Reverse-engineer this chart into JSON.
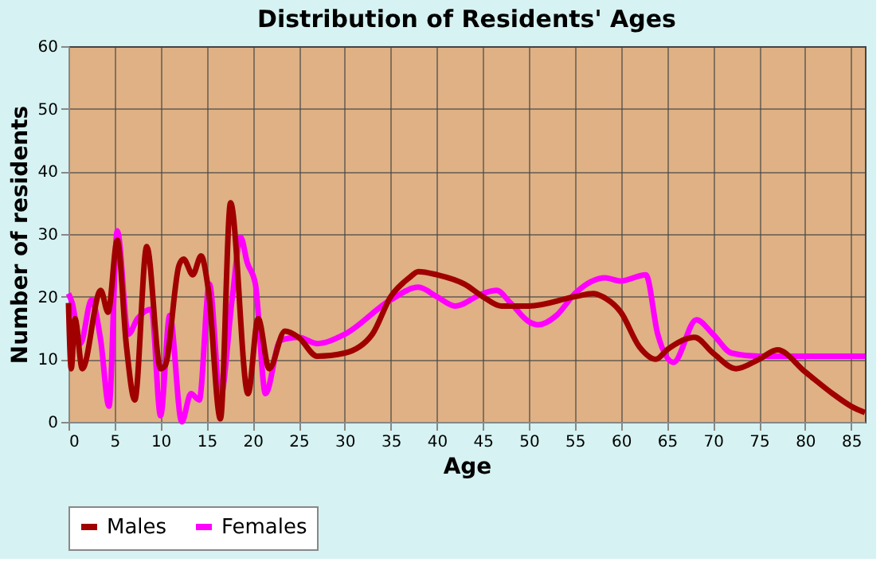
{
  "chart_data": {
    "type": "line",
    "title": "Distribution of Residents' Ages",
    "xlabel": "Age",
    "ylabel": "Number of residents",
    "xlim": [
      0,
      86.5
    ],
    "xticks": [
      0,
      5,
      10,
      15,
      20,
      25,
      30,
      35,
      40,
      45,
      50,
      55,
      60,
      65,
      70,
      75,
      80,
      85
    ],
    "ylim": [
      0,
      60
    ],
    "yticks": [
      0,
      10,
      20,
      30,
      40,
      50,
      60
    ],
    "grid": true,
    "legend": "bottom",
    "marker": "none",
    "line_style": "solid",
    "series": [
      {
        "name": "Males",
        "color": "#a00000",
        "x": [
          0,
          0.3,
          0.7,
          1.5,
          3.5,
          4.3,
          5.3,
          6.3,
          7.2,
          8.5,
          10,
          10.5,
          12,
          12.5,
          13.5,
          14.4,
          15.2,
          16.5,
          17.6,
          19.5,
          20.6,
          21.8,
          23.5,
          25,
          27,
          30,
          33,
          35,
          37,
          38,
          40,
          43,
          45,
          47,
          50,
          55,
          57,
          58,
          60,
          62,
          63.8,
          65,
          68,
          70,
          72.5,
          75,
          77,
          80,
          83,
          85,
          86.5
        ],
        "values": [
          19,
          8.5,
          16.5,
          8.5,
          21,
          17.5,
          29,
          12,
          3.5,
          28,
          8.5,
          9,
          25,
          26,
          23.5,
          26.5,
          21,
          0.5,
          35,
          4.5,
          16.5,
          8.5,
          14.5,
          13.5,
          10.5,
          11,
          14,
          20,
          23,
          24,
          23.5,
          22,
          20,
          18.5,
          18.5,
          20,
          20.5,
          20,
          17.5,
          12,
          10,
          11.5,
          13.5,
          11,
          8.5,
          10,
          11.5,
          8,
          4.5,
          2.5,
          1.5
        ]
      },
      {
        "name": "Females",
        "color": "#ff00ff",
        "x": [
          0,
          0.4,
          1.3,
          2.5,
          3.5,
          4.4,
          5.3,
          6.5,
          7.5,
          9,
          10,
          11,
          12.3,
          13.3,
          14.2,
          15.3,
          16.5,
          17.8,
          18.7,
          19.4,
          20.3,
          21.4,
          23,
          25,
          27,
          30,
          35,
          38,
          40,
          42,
          45,
          46.5,
          48,
          50,
          51,
          53,
          55,
          58.3,
          60,
          62.7,
          64,
          65.7,
          68.2,
          70,
          72,
          75,
          86.5
        ],
        "values": [
          20.5,
          19,
          12.5,
          19.5,
          13,
          2.5,
          30.5,
          14,
          16.5,
          18,
          1,
          17,
          0,
          4.5,
          3.5,
          22,
          4,
          20,
          29.5,
          25.5,
          22,
          4.5,
          13,
          13.5,
          12.5,
          14,
          19.5,
          21.5,
          20,
          18.5,
          20.5,
          21,
          19,
          16,
          15.5,
          17,
          20.5,
          23,
          22.5,
          23.5,
          14,
          9.5,
          16.3,
          14,
          11,
          10.5,
          10.5
        ]
      }
    ]
  }
}
